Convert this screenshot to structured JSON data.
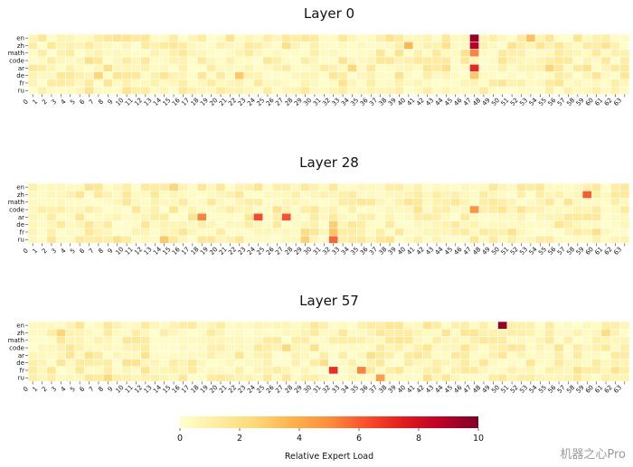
{
  "chart_data": {
    "type": "heatmap",
    "languages": [
      "en",
      "zh",
      "math",
      "code",
      "ar",
      "de",
      "fr",
      "ru"
    ],
    "expert_ticks": [
      "0",
      "1",
      "2",
      "3",
      "4",
      "5",
      "6",
      "7",
      "8",
      "9",
      "10",
      "11",
      "12",
      "13",
      "14",
      "15",
      "16",
      "17",
      "18",
      "19",
      "20",
      "21",
      "22",
      "23",
      "24",
      "25",
      "26",
      "27",
      "28",
      "29",
      "30",
      "31",
      "32",
      "33",
      "34",
      "35",
      "36",
      "37",
      "38",
      "39",
      "40",
      "41",
      "42",
      "43",
      "44",
      "45",
      "46",
      "47",
      "48",
      "49",
      "50",
      "51",
      "52",
      "53",
      "54",
      "55",
      "56",
      "57",
      "58",
      "59",
      "60",
      "61",
      "62",
      "63"
    ],
    "panels": [
      {
        "title": "Layer 0",
        "hotspots": [
          {
            "lang": "en",
            "expert": 47,
            "value": 9.5
          },
          {
            "lang": "zh",
            "expert": 47,
            "value": 8.8
          },
          {
            "lang": "math",
            "expert": 47,
            "value": 5.2
          },
          {
            "lang": "ar",
            "expert": 47,
            "value": 7.2
          },
          {
            "lang": "de",
            "expert": 47,
            "value": 3.0
          },
          {
            "lang": "en",
            "expert": 53,
            "value": 3.2
          },
          {
            "lang": "zh",
            "expert": 40,
            "value": 3.6
          },
          {
            "lang": "de",
            "expert": 22,
            "value": 3.0
          },
          {
            "lang": "de",
            "expert": 7,
            "value": 2.6
          },
          {
            "lang": "ar",
            "expert": 34,
            "value": 2.5
          },
          {
            "lang": "ar",
            "expert": 55,
            "value": 2.6
          },
          {
            "lang": "code",
            "expert": 6,
            "value": 2.0
          },
          {
            "lang": "ar",
            "expert": 8,
            "value": 2.0
          },
          {
            "lang": "zh",
            "expert": 27,
            "value": 2.0
          },
          {
            "lang": "ar",
            "expert": 44,
            "value": 2.0
          },
          {
            "lang": "zh",
            "expert": 44,
            "value": 1.9
          }
        ]
      },
      {
        "title": "Layer 28",
        "hotspots": [
          {
            "lang": "ar",
            "expert": 24,
            "value": 6.4
          },
          {
            "lang": "ar",
            "expert": 27,
            "value": 6.2
          },
          {
            "lang": "ar",
            "expert": 18,
            "value": 5.2
          },
          {
            "lang": "zh",
            "expert": 59,
            "value": 6.0
          },
          {
            "lang": "code",
            "expert": 47,
            "value": 4.8
          },
          {
            "lang": "ru",
            "expert": 32,
            "value": 5.8
          },
          {
            "lang": "fr",
            "expert": 32,
            "value": 3.2
          },
          {
            "lang": "de",
            "expert": 32,
            "value": 2.8
          },
          {
            "lang": "ru",
            "expert": 14,
            "value": 3.0
          },
          {
            "lang": "en",
            "expert": 15,
            "value": 2.6
          },
          {
            "lang": "ru",
            "expert": 29,
            "value": 2.7
          },
          {
            "lang": "fr",
            "expert": 29,
            "value": 2.2
          },
          {
            "lang": "fr",
            "expert": 60,
            "value": 2.0
          }
        ]
      },
      {
        "title": "Layer 57",
        "hotspots": [
          {
            "lang": "en",
            "expert": 50,
            "value": 9.5
          },
          {
            "lang": "fr",
            "expert": 32,
            "value": 7.0
          },
          {
            "lang": "fr",
            "expert": 35,
            "value": 5.2
          },
          {
            "lang": "ru",
            "expert": 37,
            "value": 4.4
          },
          {
            "lang": "zh",
            "expert": 3,
            "value": 2.6
          },
          {
            "lang": "ru",
            "expert": 8,
            "value": 2.4
          },
          {
            "lang": "code",
            "expert": 27,
            "value": 2.4
          },
          {
            "lang": "de",
            "expert": 31,
            "value": 2.0
          },
          {
            "lang": "zh",
            "expert": 61,
            "value": 2.2
          },
          {
            "lang": "ar",
            "expert": 36,
            "value": 2.0
          }
        ]
      }
    ],
    "colorbar": {
      "label": "Relative Expert Load",
      "min": 0,
      "max": 10,
      "ticks": [
        "0",
        "2",
        "4",
        "6",
        "8",
        "10"
      ],
      "colors": [
        "#ffffcc",
        "#ffeda0",
        "#fed976",
        "#feb24c",
        "#fd8d3c",
        "#fc4e2a",
        "#e31a1c",
        "#bd0026",
        "#800026"
      ]
    }
  },
  "watermark": "机器之心Pro"
}
